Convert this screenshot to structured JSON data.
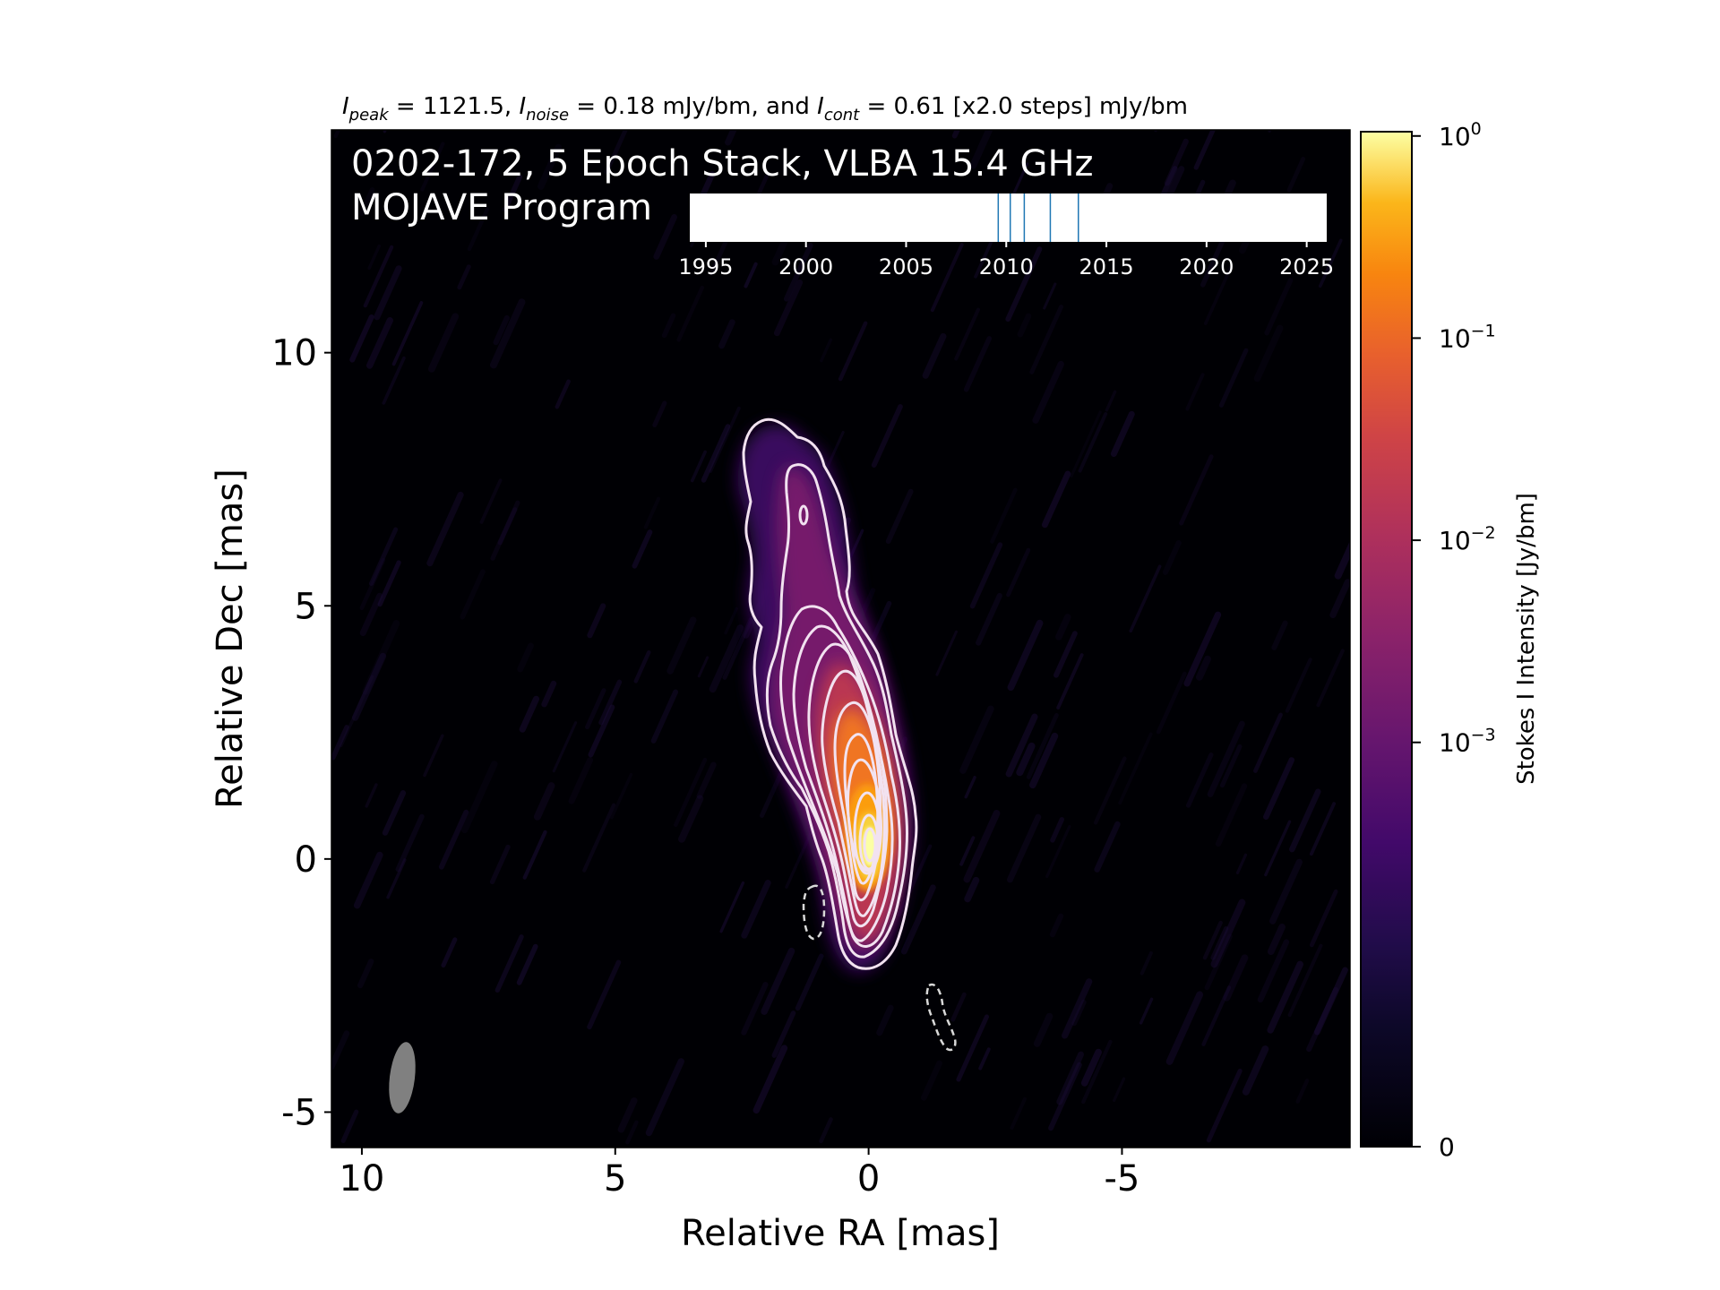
{
  "chart_data": {
    "type": "heatmap",
    "subtitle": {
      "peak_symbol": "I",
      "peak_sub": "peak",
      "peak_text": " = 1121.5, ",
      "noise_symbol": "I",
      "noise_sub": "noise",
      "noise_text": " = 0.18 mJy/bm, and ",
      "cont_symbol": "I",
      "cont_sub": "cont",
      "cont_text": " = 0.61 [x2.0 steps] mJy/bm"
    },
    "title_line1": "0202-172, 5 Epoch Stack, VLBA 15.4 GHz",
    "title_line2": "MOJAVE Program",
    "xlabel": "Relative RA [mas]",
    "ylabel": "Relative Dec [mas]",
    "xlim": [
      10.6,
      -9.5
    ],
    "ylim": [
      -5.7,
      14.4
    ],
    "x_ticks": [
      10,
      5,
      0,
      -5
    ],
    "x_tick_labels": [
      "10",
      "5",
      "0",
      "-5"
    ],
    "y_ticks": [
      10,
      5,
      0,
      -5
    ],
    "y_tick_labels": [
      "10",
      "5",
      "0",
      "-5"
    ],
    "colorbar": {
      "label": "Stokes I Intensity [Jy/bm]",
      "scale": "symlog",
      "ticks": [
        {
          "base": "10",
          "exp": "0",
          "value": 1.0
        },
        {
          "base": "10",
          "exp": "−1",
          "value": 0.1
        },
        {
          "base": "10",
          "exp": "−2",
          "value": 0.01
        },
        {
          "base": "10",
          "exp": "−3",
          "value": 0.001
        },
        {
          "base": "0",
          "exp": "",
          "value": 0
        }
      ],
      "colormap": "inferno"
    },
    "epoch_timeline": {
      "xlim": [
        1994.2,
        2026.0
      ],
      "tick_labels": [
        "1995",
        "2000",
        "2005",
        "2010",
        "2015",
        "2020",
        "2025"
      ],
      "tick_years": [
        1995,
        2000,
        2005,
        2010,
        2015,
        2020,
        2025
      ],
      "epochs": [
        2009.6,
        2010.2,
        2010.9,
        2012.2,
        2013.6
      ],
      "epoch_color": "#1f77b4"
    },
    "source": {
      "core_position": [
        0,
        0
      ],
      "peak_flux_mJy_per_beam": 1121.5,
      "noise_mJy_per_beam": 0.18,
      "lowest_contour_mJy_per_beam": 0.61,
      "contour_step_factor": 2.0,
      "jet_direction": "north, slightly east",
      "jet_extent_mas": 8.5
    },
    "beam": {
      "center": [
        9.2,
        -4.4
      ],
      "major_mas": 1.4,
      "minor_mas": 0.55,
      "pa_deg": -5,
      "color": "#808080"
    }
  }
}
